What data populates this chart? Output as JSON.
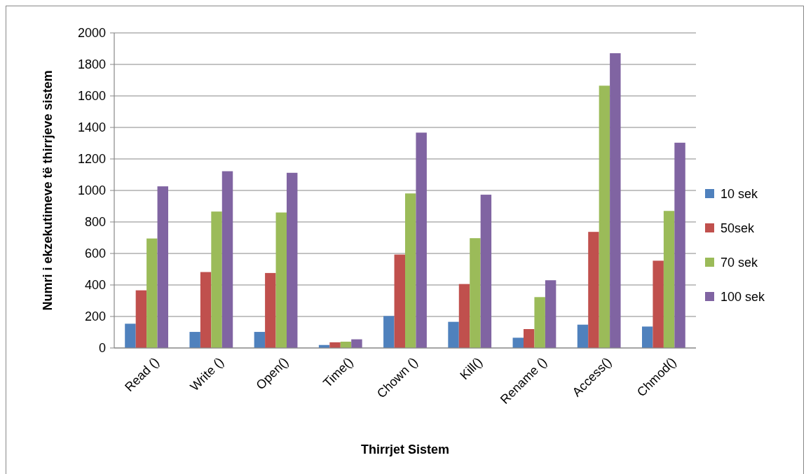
{
  "chart_data": {
    "type": "bar",
    "xlabel": "Thirrjet Sistem",
    "ylabel": "Numri i ekzekutimeve të thirrjeve sistem",
    "categories": [
      "Read ()",
      "Write ()",
      "Open()",
      "Time()",
      "Chown ()",
      "Kill()",
      "Rename ()",
      "Access()",
      "Chmod()"
    ],
    "series": [
      {
        "name": "10 sek",
        "color": "#4f81bd",
        "values": [
          154,
          102,
          102,
          19,
          203,
          166,
          65,
          148,
          136
        ]
      },
      {
        "name": "50sek",
        "color": "#c0504d",
        "values": [
          366,
          482,
          476,
          36,
          593,
          406,
          120,
          737,
          554
        ]
      },
      {
        "name": "70 sek",
        "color": "#9bbb59",
        "values": [
          695,
          866,
          860,
          40,
          981,
          697,
          323,
          1665,
          870
        ]
      },
      {
        "name": "100 sek",
        "color": "#8064a2",
        "values": [
          1026,
          1122,
          1112,
          55,
          1367,
          973,
          430,
          1871,
          1303
        ]
      }
    ],
    "ylim": [
      0,
      2000
    ],
    "yticks": [
      0,
      200,
      400,
      600,
      800,
      1000,
      1200,
      1400,
      1600,
      1800,
      2000
    ],
    "grid": "y",
    "legend": "right"
  }
}
